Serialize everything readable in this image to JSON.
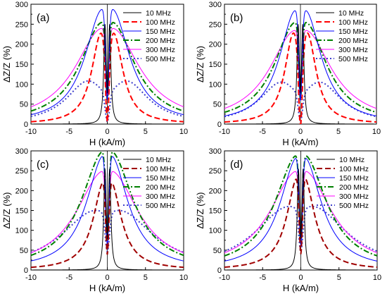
{
  "chart_data": [
    {
      "type": "line",
      "panel_label": "(a)",
      "xlabel": "H (kA/m)",
      "ylabel": "ΔZ/Z (%)",
      "xlim": [
        -10,
        10
      ],
      "ylim": [
        0,
        300
      ],
      "xticks": [
        -10,
        -5,
        0,
        5,
        10
      ],
      "yticks": [
        0,
        50,
        100,
        150,
        200,
        250,
        300
      ],
      "legend_position": "top-right",
      "series": [
        {
          "name": "10 MHz",
          "color": "#000000",
          "dash": "solid",
          "peak_h": 0.3,
          "peak": 250,
          "width": 0.2,
          "dip": 0,
          "dip_width": 0.1
        },
        {
          "name": "100 MHz",
          "color": "#ff0000",
          "dash": "dash",
          "peak_h": 0.8,
          "peak": 228,
          "width": 1.5,
          "dip": 25,
          "dip_width": 0.35
        },
        {
          "name": "150 MHz",
          "color": "#0000ff",
          "dash": "solid",
          "peak_h": 0.6,
          "peak": 288,
          "width": 2.8,
          "dip": 35,
          "dip_width": 0.3
        },
        {
          "name": "200 MHz",
          "color": "#007f00",
          "dash": "dashdot",
          "peak_h": 0.6,
          "peak": 255,
          "width": 3.6,
          "dip": 35,
          "dip_width": 0.3
        },
        {
          "name": "300 MHz",
          "color": "#ff00ff",
          "dash": "solid",
          "peak_h": 0.6,
          "peak": 240,
          "width": 4.4,
          "dip": 40,
          "dip_width": 0.3
        },
        {
          "name": "500 MHz",
          "color": "#4040cc",
          "dash": "dot",
          "peak_h": 2.5,
          "peak": 108,
          "width": 3.5,
          "dip": 30,
          "dip_width": 0.4
        }
      ]
    },
    {
      "type": "line",
      "panel_label": "(b)",
      "xlabel": "H (kA/m)",
      "ylabel": "ΔZ/Z (%)",
      "xlim": [
        -10,
        10
      ],
      "ylim": [
        0,
        300
      ],
      "xticks": [
        -10,
        -5,
        0,
        5,
        10
      ],
      "yticks": [
        0,
        50,
        100,
        150,
        200,
        250,
        300
      ],
      "legend_position": "top-right",
      "series": [
        {
          "name": "10 MHz",
          "color": "#000000",
          "dash": "solid",
          "peak_h": 0.3,
          "peak": 250,
          "width": 0.2,
          "dip": 0,
          "dip_width": 0.1
        },
        {
          "name": "100 MHz",
          "color": "#ff0000",
          "dash": "dash",
          "peak_h": 0.9,
          "peak": 228,
          "width": 1.4,
          "dip": 25,
          "dip_width": 0.35
        },
        {
          "name": "150 MHz",
          "color": "#0000ff",
          "dash": "solid",
          "peak_h": 0.6,
          "peak": 285,
          "width": 2.6,
          "dip": 35,
          "dip_width": 0.3
        },
        {
          "name": "200 MHz",
          "color": "#007f00",
          "dash": "dashdot",
          "peak_h": 0.6,
          "peak": 255,
          "width": 3.4,
          "dip": 35,
          "dip_width": 0.3
        },
        {
          "name": "300 MHz",
          "color": "#ff00ff",
          "dash": "solid",
          "peak_h": 0.6,
          "peak": 235,
          "width": 4.2,
          "dip": 40,
          "dip_width": 0.3
        },
        {
          "name": "500 MHz",
          "color": "#4040cc",
          "dash": "dot",
          "peak_h": 2.5,
          "peak": 105,
          "width": 3.5,
          "dip": 30,
          "dip_width": 0.4
        }
      ]
    },
    {
      "type": "line",
      "panel_label": "(c)",
      "xlabel": "H (kA/m)",
      "ylabel": "ΔZ/Z (%)",
      "xlim": [
        -10,
        10
      ],
      "ylim": [
        0,
        300
      ],
      "xticks": [
        -10,
        -5,
        0,
        5,
        10
      ],
      "yticks": [
        0,
        50,
        100,
        150,
        200,
        250,
        300
      ],
      "legend_position": "top-right",
      "series": [
        {
          "name": "10 MHz",
          "color": "#000000",
          "dash": "solid",
          "peak_h": 0.3,
          "peak": 255,
          "width": 0.2,
          "dip": 0,
          "dip_width": 0.1
        },
        {
          "name": "100 MHz",
          "color": "#a00000",
          "dash": "dash",
          "peak_h": 0.4,
          "peak": 225,
          "width": 1.7,
          "dip": 20,
          "dip_width": 0.3
        },
        {
          "name": "150 MHz",
          "color": "#0000ff",
          "dash": "solid",
          "peak_h": 0.4,
          "peak": 290,
          "width": 2.8,
          "dip": 30,
          "dip_width": 0.3
        },
        {
          "name": "200 MHz",
          "color": "#007f00",
          "dash": "dashdot",
          "peak_h": 0.4,
          "peak": 300,
          "width": 3.6,
          "dip": 30,
          "dip_width": 0.3
        },
        {
          "name": "300 MHz",
          "color": "#ff00ff",
          "dash": "solid",
          "peak_h": 0.4,
          "peak": 250,
          "width": 4.4,
          "dip": 35,
          "dip_width": 0.3
        },
        {
          "name": "500 MHz",
          "color": "#4040cc",
          "dash": "dot",
          "peak_h": 1.5,
          "peak": 150,
          "width": 5.5,
          "dip": 40,
          "dip_width": 0.4
        }
      ]
    },
    {
      "type": "line",
      "panel_label": "(d)",
      "xlabel": "H (kA/m)",
      "ylabel": "ΔZ/Z (%)",
      "xlim": [
        -10,
        10
      ],
      "ylim": [
        0,
        300
      ],
      "xticks": [
        -10,
        -5,
        0,
        5,
        10
      ],
      "yticks": [
        0,
        50,
        100,
        150,
        200,
        250,
        300
      ],
      "legend_position": "top-right",
      "series": [
        {
          "name": "10 MHz",
          "color": "#000000",
          "dash": "solid",
          "peak_h": 0.3,
          "peak": 255,
          "width": 0.2,
          "dip": 0,
          "dip_width": 0.1
        },
        {
          "name": "100 MHz",
          "color": "#a00000",
          "dash": "dash",
          "peak_h": 0.4,
          "peak": 235,
          "width": 1.7,
          "dip": 20,
          "dip_width": 0.3
        },
        {
          "name": "150 MHz",
          "color": "#0000ff",
          "dash": "solid",
          "peak_h": 0.4,
          "peak": 285,
          "width": 2.8,
          "dip": 30,
          "dip_width": 0.3
        },
        {
          "name": "200 MHz",
          "color": "#007f00",
          "dash": "dashdot",
          "peak_h": 0.4,
          "peak": 290,
          "width": 3.6,
          "dip": 30,
          "dip_width": 0.3
        },
        {
          "name": "300 MHz",
          "color": "#ff00ff",
          "dash": "solid",
          "peak_h": 0.4,
          "peak": 250,
          "width": 4.4,
          "dip": 35,
          "dip_width": 0.3
        },
        {
          "name": "500 MHz",
          "color": "#4040cc",
          "dash": "dot",
          "peak_h": 1.5,
          "peak": 160,
          "width": 5.5,
          "dip": 40,
          "dip_width": 0.4
        }
      ]
    }
  ]
}
